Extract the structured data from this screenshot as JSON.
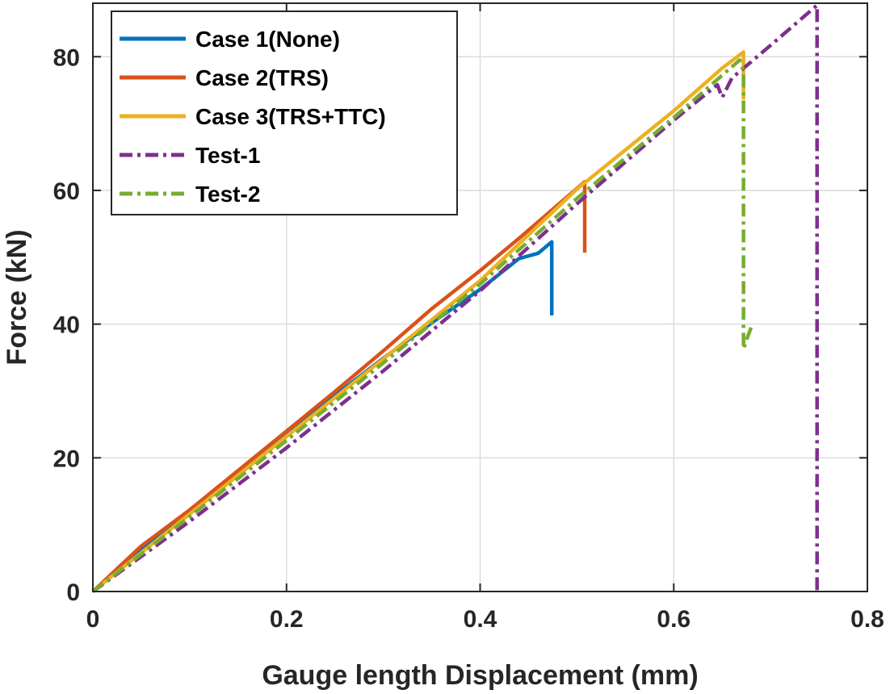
{
  "chart_data": {
    "type": "line",
    "title": "",
    "xlabel": "Gauge length Displacement (mm)",
    "ylabel": "Force (kN)",
    "xlim": [
      0,
      0.8
    ],
    "ylim": [
      0,
      88
    ],
    "xticks": [
      0,
      0.2,
      0.4,
      0.6,
      0.8
    ],
    "xtick_labels": [
      "0",
      "0.2",
      "0.4",
      "0.6",
      "0.8"
    ],
    "yticks": [
      0,
      20,
      40,
      60,
      80
    ],
    "ytick_labels": [
      "0",
      "20",
      "40",
      "60",
      "80"
    ],
    "grid": true,
    "legend_position": "top-left",
    "series": [
      {
        "name": "Case 1(None)",
        "color": "#0072BD",
        "dash": "solid",
        "x": [
          0,
          0.05,
          0.1,
          0.15,
          0.2,
          0.25,
          0.3,
          0.35,
          0.4,
          0.44,
          0.46,
          0.474,
          0.474
        ],
        "y": [
          0,
          6.5,
          11.7,
          17.4,
          23.3,
          29.3,
          34.9,
          40.2,
          45.2,
          49.8,
          50.6,
          52.3,
          41.3
        ]
      },
      {
        "name": "Case 2(TRS)",
        "color": "#D95319",
        "dash": "solid",
        "x": [
          0,
          0.05,
          0.1,
          0.15,
          0.2,
          0.25,
          0.3,
          0.35,
          0.4,
          0.44,
          0.48,
          0.508,
          0.508
        ],
        "y": [
          0,
          6.8,
          12.2,
          18.1,
          24.0,
          29.9,
          36.0,
          42.3,
          48.0,
          52.8,
          57.8,
          61.3,
          50.7
        ]
      },
      {
        "name": "Case 3(TRS+TTC)",
        "color": "#EDB120",
        "dash": "solid",
        "x": [
          0,
          0.1,
          0.2,
          0.3,
          0.4,
          0.5,
          0.6,
          0.65,
          0.672,
          0.672
        ],
        "y": [
          0,
          11.6,
          23.2,
          34.8,
          46.5,
          60.2,
          71.9,
          78.3,
          80.7,
          73.6
        ]
      },
      {
        "name": "Test-1",
        "color": "#7E2F8E",
        "dash": "dashdot",
        "x": [
          0,
          0.1,
          0.2,
          0.3,
          0.4,
          0.5,
          0.6,
          0.645,
          0.65,
          0.66,
          0.7,
          0.748,
          0.748
        ],
        "y": [
          0,
          10.5,
          21.5,
          33.0,
          45.0,
          58.0,
          70.5,
          75.8,
          73.9,
          76.8,
          81.7,
          87.7,
          0
        ]
      },
      {
        "name": "Test-2",
        "color": "#77AC30",
        "dash": "dashdot",
        "x": [
          0,
          0.1,
          0.2,
          0.3,
          0.4,
          0.5,
          0.6,
          0.668,
          0.672,
          0.672,
          0.675,
          0.68
        ],
        "y": [
          0,
          11.2,
          22.6,
          34.2,
          46.0,
          58.8,
          70.9,
          79.5,
          78.0,
          36.3,
          37.6,
          39.5
        ]
      }
    ]
  }
}
